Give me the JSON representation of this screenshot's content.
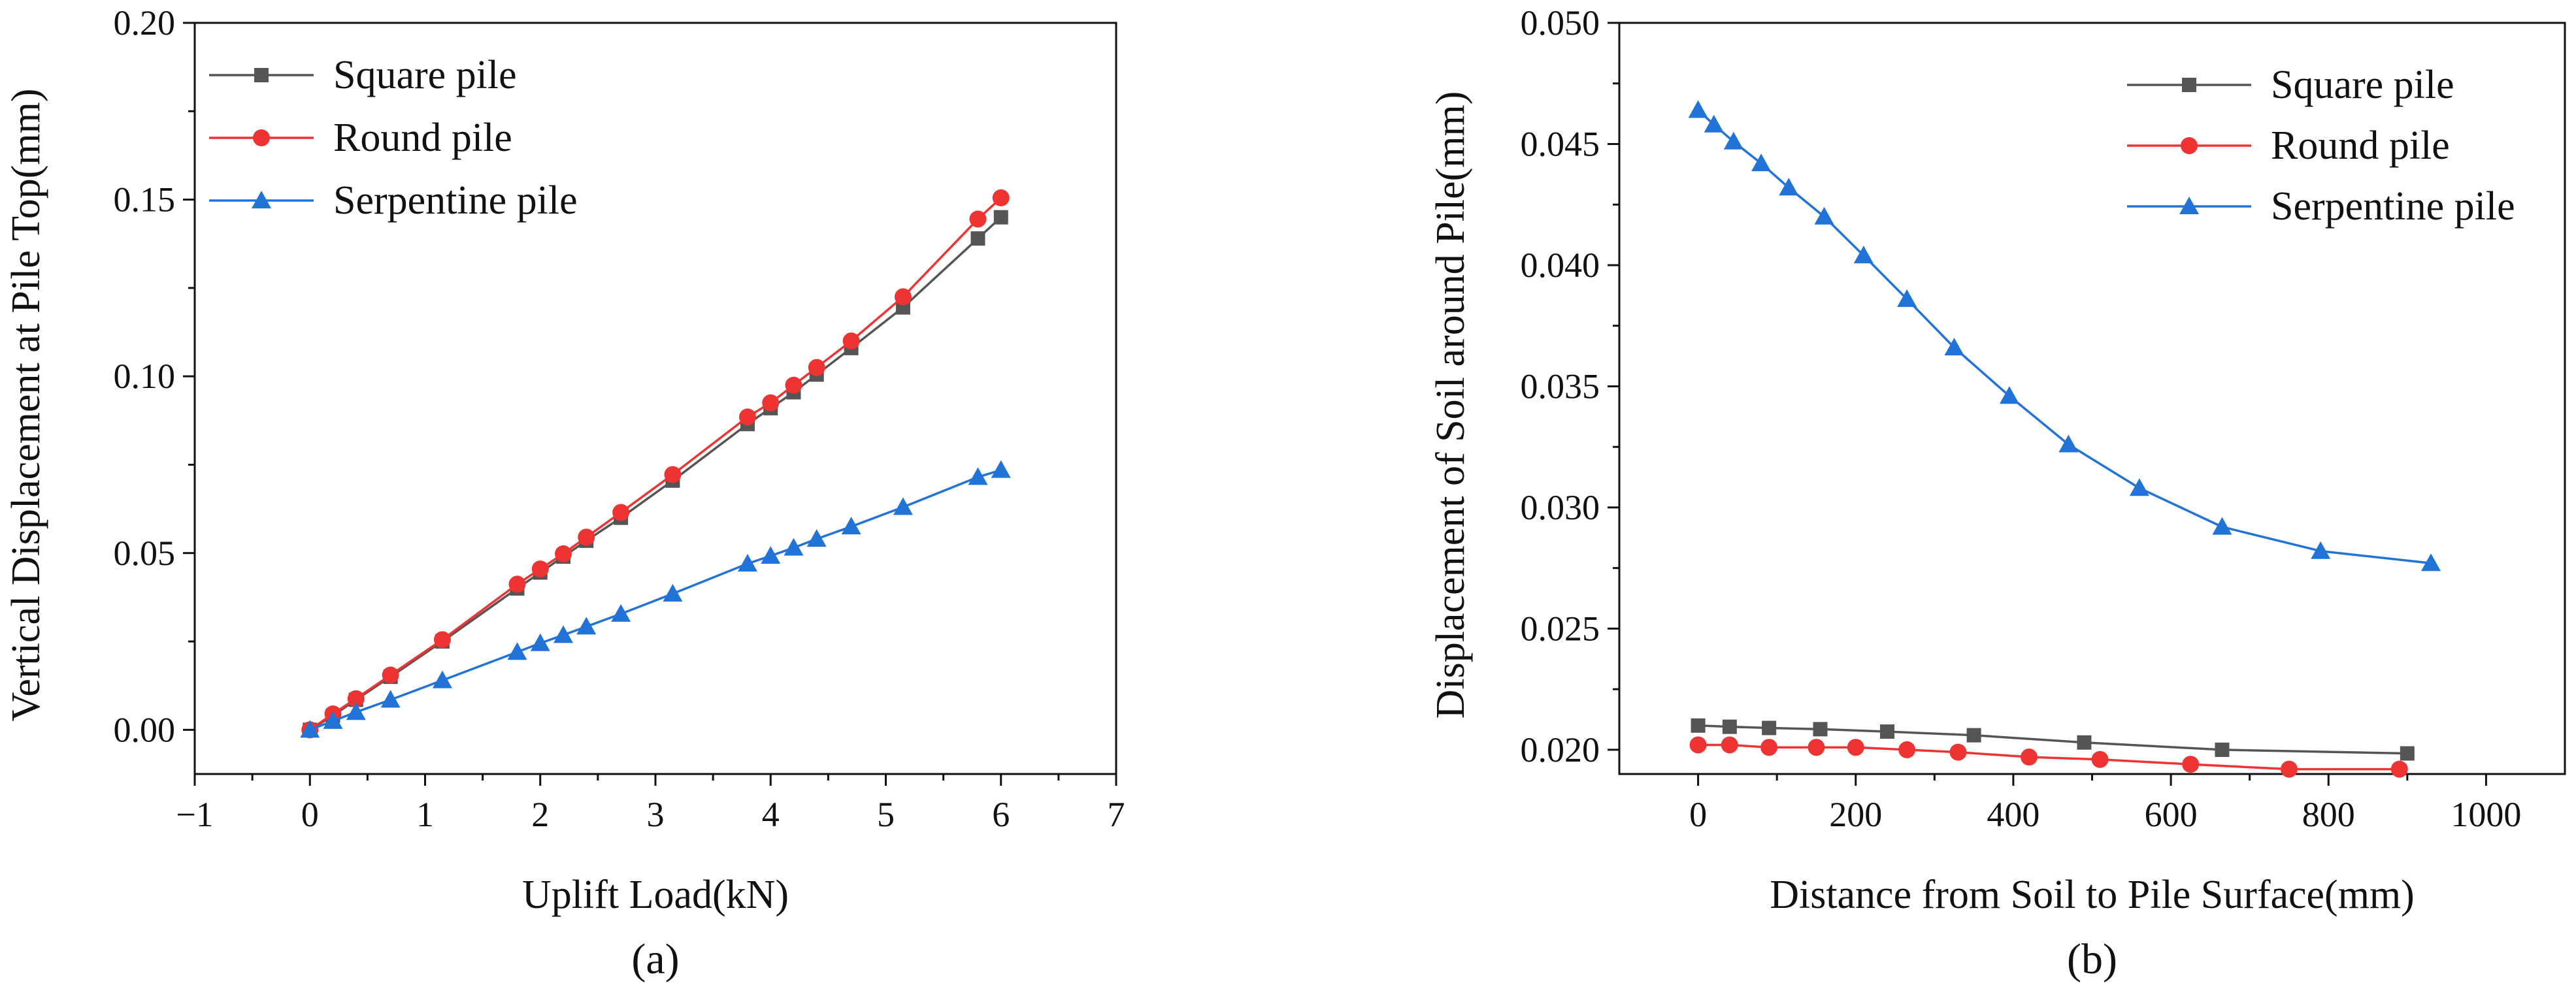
{
  "chart_data": [
    {
      "type": "line",
      "panel": "a",
      "panel_label": "(a)",
      "title": "",
      "xlabel": "Uplift Load(kN)",
      "ylabel": "Vertical Displacement at Pile Top(mm)",
      "xlim": [
        -1,
        7
      ],
      "ylim": [
        -0.0125,
        0.2
      ],
      "xticks": [
        -1,
        0,
        1,
        2,
        3,
        4,
        5,
        6,
        7
      ],
      "xtick_labels": [
        "−1",
        "0",
        "1",
        "2",
        "3",
        "4",
        "5",
        "6",
        "7"
      ],
      "yticks": [
        0,
        0.05,
        0.1,
        0.15,
        0.2
      ],
      "ytick_labels": [
        "0.00",
        "0.05",
        "0.10",
        "0.15",
        "0.20"
      ],
      "legend_position": "top-left",
      "series": [
        {
          "name": "Square pile",
          "color": "#555555",
          "marker": "square",
          "x": [
            0,
            0.2,
            0.4,
            0.7,
            1.15,
            1.8,
            2.0,
            2.2,
            2.4,
            2.7,
            3.15,
            3.8,
            4.0,
            4.2,
            4.4,
            4.7,
            5.15,
            5.8,
            6.0
          ],
          "y": [
            0,
            0.004,
            0.0085,
            0.015,
            0.025,
            0.04,
            0.0445,
            0.049,
            0.0535,
            0.06,
            0.0705,
            0.0865,
            0.091,
            0.0955,
            0.1005,
            0.108,
            0.1195,
            0.139,
            0.145
          ]
        },
        {
          "name": "Round pile",
          "color": "#ee3333",
          "marker": "circle",
          "x": [
            0,
            0.2,
            0.4,
            0.7,
            1.15,
            1.8,
            2.0,
            2.2,
            2.4,
            2.7,
            3.15,
            3.8,
            4.0,
            4.2,
            4.4,
            4.7,
            5.15,
            5.8,
            6.0
          ],
          "y": [
            0,
            0.0045,
            0.0088,
            0.0155,
            0.0255,
            0.0412,
            0.0455,
            0.0498,
            0.0545,
            0.0615,
            0.0722,
            0.0885,
            0.0925,
            0.0975,
            0.1025,
            0.11,
            0.1225,
            0.1445,
            0.1505
          ]
        },
        {
          "name": "Serpentine pile",
          "color": "#2273d8",
          "marker": "triangle",
          "x": [
            0,
            0.2,
            0.4,
            0.7,
            1.15,
            1.8,
            2.0,
            2.2,
            2.4,
            2.7,
            3.15,
            3.8,
            4.0,
            4.2,
            4.4,
            4.7,
            5.15,
            5.8,
            6.0
          ],
          "y": [
            0,
            0.0025,
            0.005,
            0.0085,
            0.014,
            0.022,
            0.0245,
            0.0268,
            0.0292,
            0.0328,
            0.0385,
            0.047,
            0.0492,
            0.0515,
            0.054,
            0.0575,
            0.063,
            0.0715,
            0.0735
          ]
        }
      ]
    },
    {
      "type": "line",
      "panel": "b",
      "panel_label": "(b)",
      "title": "",
      "xlabel": "Distance from Soil to Pile Surface(mm)",
      "ylabel": "Displacement of Soil around Pile(mm)",
      "xlim": [
        -100,
        1100
      ],
      "ylim": [
        0.019,
        0.05
      ],
      "xticks": [
        0,
        200,
        400,
        600,
        800,
        1000
      ],
      "xtick_labels": [
        "0",
        "200",
        "400",
        "600",
        "800",
        "1000"
      ],
      "yticks": [
        0.02,
        0.025,
        0.03,
        0.035,
        0.04,
        0.045,
        0.05
      ],
      "ytick_labels": [
        "0.020",
        "0.025",
        "0.030",
        "0.035",
        "0.040",
        "0.045",
        "0.050"
      ],
      "legend_position": "top-right",
      "series": [
        {
          "name": "Square pile",
          "color": "#555555",
          "marker": "square",
          "x": [
            0,
            40,
            90,
            155,
            240,
            350,
            490,
            665,
            900
          ],
          "y": [
            0.021,
            0.02095,
            0.0209,
            0.02085,
            0.02075,
            0.0206,
            0.0203,
            0.02,
            0.01985
          ]
        },
        {
          "name": "Round pile",
          "color": "#ee3333",
          "marker": "circle",
          "x": [
            0,
            40,
            90,
            150,
            200,
            265,
            330,
            420,
            510,
            625,
            750,
            890
          ],
          "y": [
            0.0202,
            0.0202,
            0.0201,
            0.0201,
            0.0201,
            0.02,
            0.0199,
            0.0197,
            0.0196,
            0.0194,
            0.0192,
            0.0192
          ]
        },
        {
          "name": "Serpentine pile",
          "color": "#2273d8",
          "marker": "triangle",
          "x": [
            0,
            20,
            45,
            80,
            115,
            160,
            210,
            265,
            325,
            395,
            470,
            560,
            665,
            790,
            930
          ],
          "y": [
            0.0464,
            0.0458,
            0.0451,
            0.0442,
            0.0432,
            0.042,
            0.0404,
            0.0386,
            0.0366,
            0.0346,
            0.0326,
            0.0308,
            0.0292,
            0.0282,
            0.0277
          ]
        }
      ]
    }
  ]
}
